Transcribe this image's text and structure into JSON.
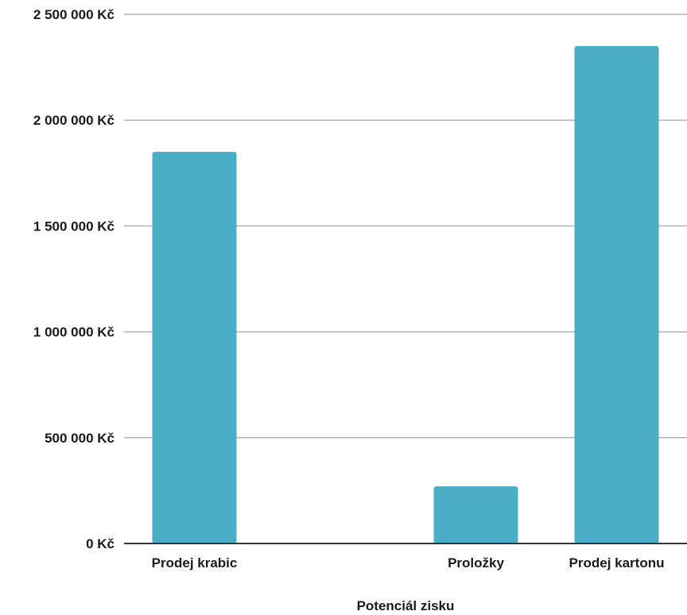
{
  "chart_data": {
    "type": "bar",
    "title": "",
    "xlabel": "Potenciál zisku",
    "ylabel": "",
    "categories": [
      "Prodej krabic",
      "",
      "Proložky",
      "Prodej kartonu"
    ],
    "values": [
      1850000,
      0,
      270000,
      2350000
    ],
    "ylim": [
      0,
      2500000
    ],
    "yticks": [
      0,
      500000,
      1000000,
      1500000,
      2000000,
      2500000
    ],
    "ytick_labels": [
      "0 Kč",
      "500 000 Kč",
      "1 000 000 Kč",
      "1 500 000 Kč",
      "2 000 000 Kč",
      "2 500 000 Kč"
    ],
    "grid": true,
    "legend": "none",
    "colors": {
      "bar": "#4BACC6",
      "grid": "#b3b3b3",
      "axis": "#333333"
    }
  }
}
